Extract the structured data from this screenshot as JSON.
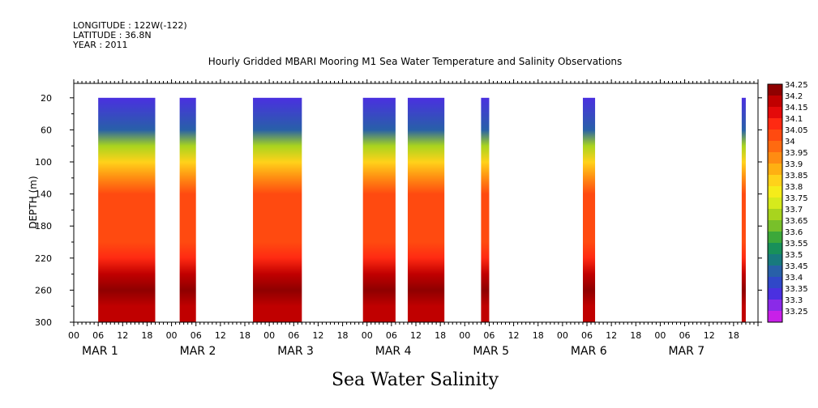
{
  "header": {
    "longitude": "LONGITUDE : 122W(-122)",
    "latitude": "LATITUDE : 36.8N",
    "year": "YEAR : 2011",
    "title": "Hourly Gridded MBARI Mooring M1 Sea Water Temperature and Salinity Observations"
  },
  "footer": {
    "variable": "Sea Water Salinity"
  },
  "chart_data": {
    "type": "heatmap",
    "title": "Hourly Gridded MBARI Mooring M1 Sea Water Temperature and Salinity Observations",
    "ylabel": "DEPTH (m)",
    "ylim": [
      300,
      2
    ],
    "y_ticks": [
      20,
      60,
      100,
      140,
      180,
      220,
      260,
      300
    ],
    "x_range_hours": [
      0,
      168
    ],
    "x_hour_ticks": [
      "00",
      "06",
      "12",
      "18"
    ],
    "x_day_labels": [
      "MAR  1",
      "MAR  2",
      "MAR  3",
      "MAR  4",
      "MAR  5",
      "MAR  6",
      "MAR  7"
    ],
    "colorbar": {
      "levels": [
        34.25,
        34.2,
        34.15,
        34.1,
        34.05,
        34,
        33.95,
        33.9,
        33.85,
        33.8,
        33.75,
        33.7,
        33.65,
        33.6,
        33.55,
        33.5,
        33.45,
        33.4,
        33.35,
        33.3,
        33.25
      ],
      "colors": [
        "#8f0000",
        "#c00000",
        "#e40a0a",
        "#ff2a12",
        "#ff4a10",
        "#ff6a10",
        "#ff8c12",
        "#ffb012",
        "#ffd21a",
        "#f5ec1a",
        "#d6ea1c",
        "#a8d41e",
        "#78c02a",
        "#3ca83a",
        "#18905a",
        "#187a7e",
        "#2860a8",
        "#3048c8",
        "#4a30e0",
        "#8a2ae8",
        "#c820e8"
      ]
    },
    "segments": [
      {
        "start": "MAR 1 06:00",
        "end": "MAR 1 20:00"
      },
      {
        "start": "MAR 2 02:00",
        "end": "MAR 2 06:00"
      },
      {
        "start": "MAR 2 20:00",
        "end": "MAR 3 08:00"
      },
      {
        "start": "MAR 3 23:00",
        "end": "MAR 4 07:00"
      },
      {
        "start": "MAR 4 10:00",
        "end": "MAR 4 19:00"
      },
      {
        "start": "MAR 5 04:00",
        "end": "MAR 5 06:00"
      },
      {
        "start": "MAR 6 05:00",
        "end": "MAR 6 08:00"
      },
      {
        "start": "MAR 7 20:00",
        "end": "MAR 7 21:00"
      }
    ],
    "profile": [
      {
        "depth": 20,
        "value": 33.35
      },
      {
        "depth": 60,
        "value": 33.45
      },
      {
        "depth": 80,
        "value": 33.7
      },
      {
        "depth": 100,
        "value": 33.85
      },
      {
        "depth": 120,
        "value": 33.95
      },
      {
        "depth": 140,
        "value": 34.05
      },
      {
        "depth": 200,
        "value": 34.05
      },
      {
        "depth": 220,
        "value": 34.1
      },
      {
        "depth": 240,
        "value": 34.2
      },
      {
        "depth": 260,
        "value": 34.25
      },
      {
        "depth": 280,
        "value": 34.2
      },
      {
        "depth": 300,
        "value": 34.2
      }
    ]
  }
}
